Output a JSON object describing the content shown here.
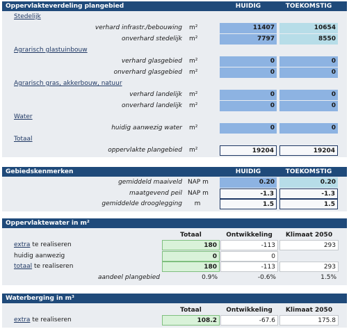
{
  "sections": [
    {
      "title": "Oppervlakteverdeling plangebied",
      "columns": [
        "HUIDIG",
        "TOEKOMSTIG"
      ],
      "groups": [
        {
          "name": "Stedelijk",
          "rows": [
            {
              "label": "verhard infrastr./bebouwing",
              "unit": "m²",
              "values": [
                "11407",
                "10654"
              ]
            },
            {
              "label": "onverhard stedelijk",
              "unit": "m²",
              "values": [
                "7797",
                "8550"
              ]
            }
          ]
        },
        {
          "name": "Agrarisch glastuinbouw",
          "rows": [
            {
              "label": "verhard glasgebied",
              "unit": "m²",
              "values": [
                "0",
                "0"
              ]
            },
            {
              "label": "onverhard glasgebied",
              "unit": "m²",
              "values": [
                "0",
                "0"
              ]
            }
          ]
        },
        {
          "name": "Agrarisch gras, akkerbouw, natuur",
          "rows": [
            {
              "label": "verhard landelijk",
              "unit": "m²",
              "values": [
                "0",
                "0"
              ]
            },
            {
              "label": "onverhard landelijk",
              "unit": "m²",
              "values": [
                "0",
                "0"
              ]
            }
          ]
        },
        {
          "name": "Water",
          "rows": [
            {
              "label": "huidig aanwezig water",
              "unit": "m²",
              "values": [
                "0",
                "0"
              ]
            }
          ]
        },
        {
          "name": "Totaal",
          "rows": [
            {
              "label": "oppervlakte plangebied",
              "unit": "m²",
              "values": [
                "19204",
                "19204"
              ]
            }
          ]
        }
      ]
    },
    {
      "title": "Gebiedskenmerken",
      "columns": [
        "HUIDIG",
        "TOEKOMSTIG"
      ],
      "rows": [
        {
          "label": "gemiddeld maaiveld",
          "unit": "NAP m",
          "values": [
            "0.20",
            "0.20"
          ]
        },
        {
          "label": "maatgevend peil",
          "unit": "NAP m",
          "values": [
            "-1.3",
            "-1.3"
          ]
        },
        {
          "label": "gemiddelde drooglegging",
          "unit": "m",
          "values": [
            "1.5",
            "1.5"
          ]
        }
      ]
    },
    {
      "title": "Oppervlaktewater in m²",
      "columns": [
        "Totaal",
        "Ontwikkeling",
        "Klimaat 2050"
      ],
      "rows": [
        {
          "link": "extra",
          "label": "te realiseren",
          "values": [
            "180",
            "-113",
            "293"
          ]
        },
        {
          "label": "huidig aanwezig",
          "values": [
            "0",
            "0",
            null
          ]
        },
        {
          "link": "totaal",
          "label": "te realiseren",
          "values": [
            "180",
            "-113",
            "293"
          ]
        },
        {
          "label": "aandeel plangebied",
          "values": [
            "0.9%",
            "-0.6%",
            "1.5%"
          ]
        }
      ]
    },
    {
      "title": "Waterberging in m³",
      "columns": [
        "Totaal",
        "Ontwikkeling",
        "Klimaat 2050"
      ],
      "rows": [
        {
          "link": "extra",
          "label": "te realiseren",
          "values": [
            "108.2",
            "-67.6",
            "175.8"
          ]
        }
      ]
    }
  ]
}
